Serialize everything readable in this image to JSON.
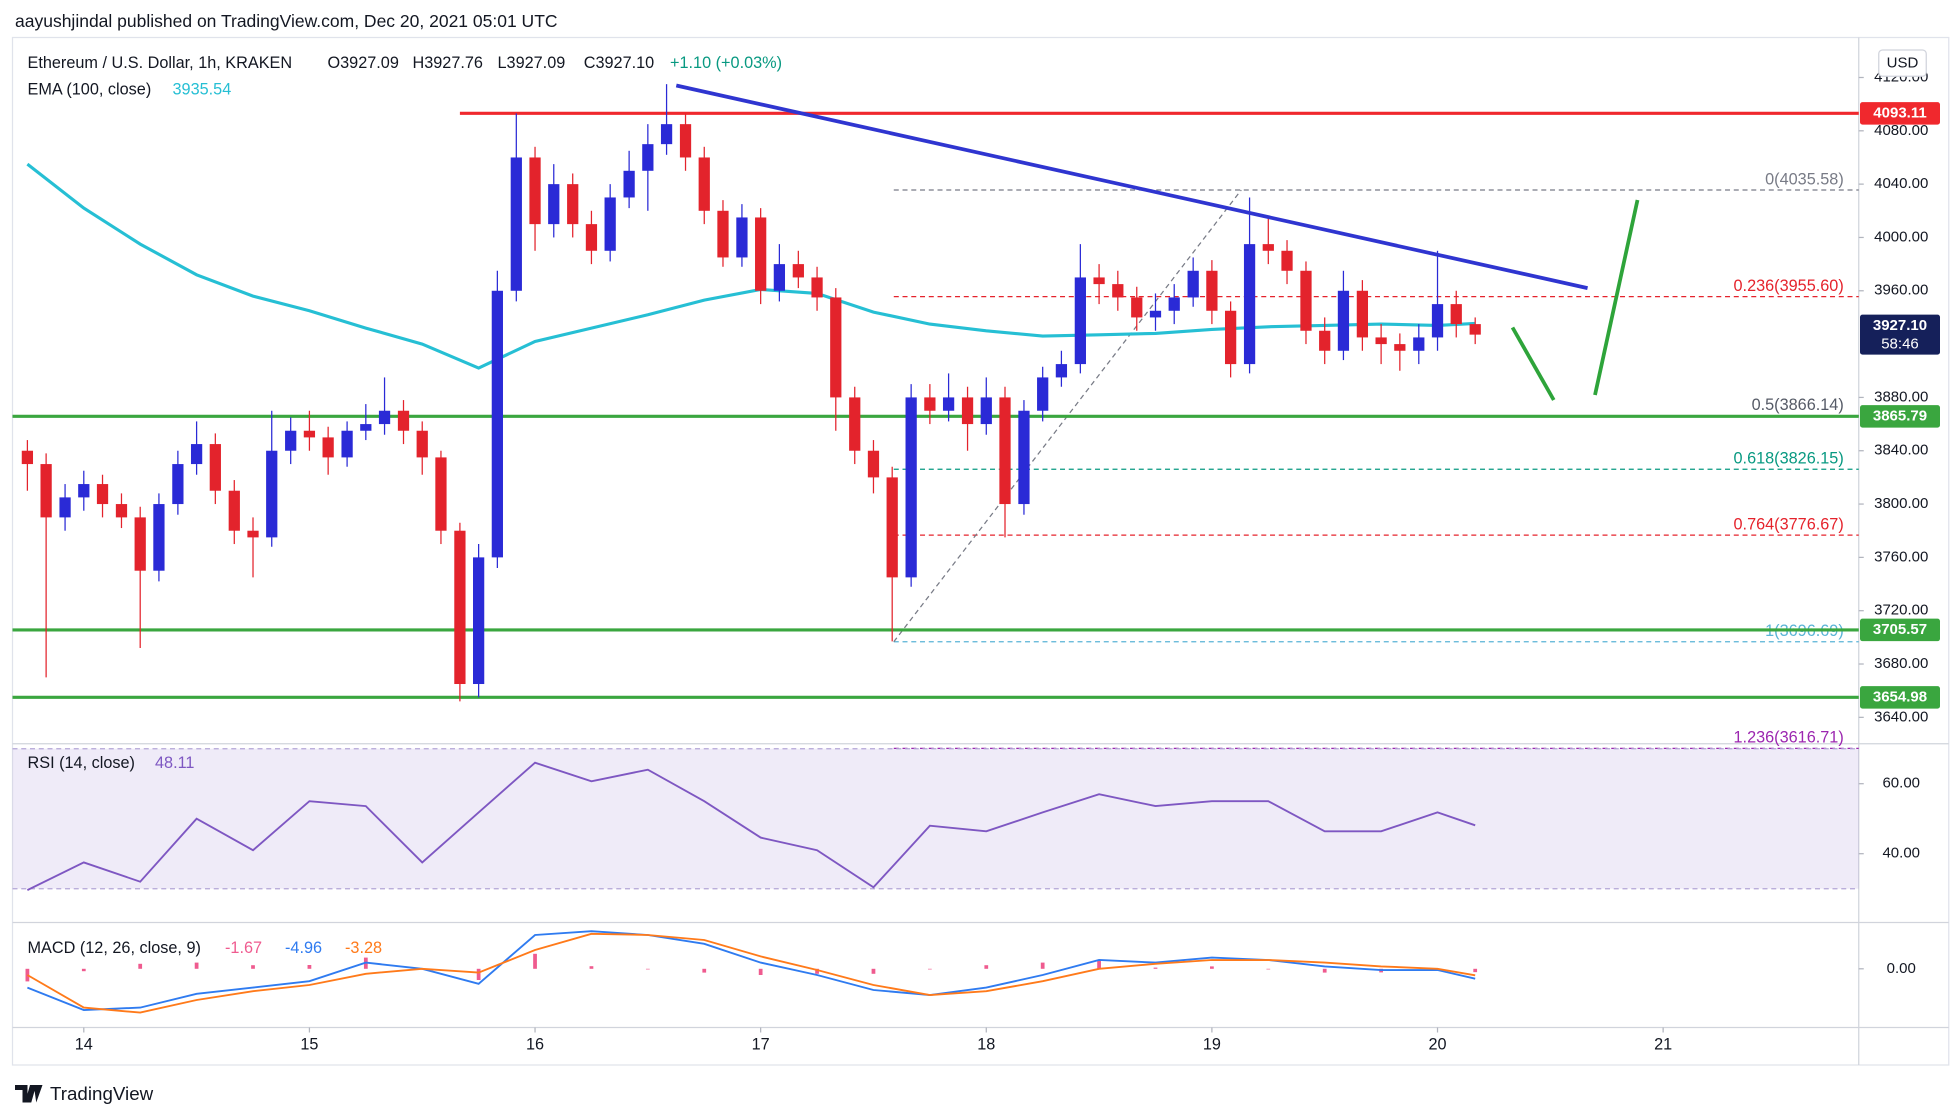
{
  "header": {
    "byline": "aayushjindal published on TradingView.com, Dec 20, 2021 05:01 UTC",
    "currency": "USD",
    "brand": "TradingView"
  },
  "chart_data": [
    {
      "type": "candlestick",
      "legend": {
        "symbol": "Ethereum / U.S. Dollar, 1h, KRAKEN",
        "open": "O3927.09",
        "high": "H3927.76",
        "low": "L3927.09",
        "close": "C3927.10",
        "change": "+1.10 (+0.03%)"
      },
      "xlim": [
        13.684,
        21.867
      ],
      "xticks": [
        14,
        15,
        16,
        17,
        18,
        19,
        20,
        21
      ],
      "ylim": [
        3623,
        4150
      ],
      "yticks": [
        {
          "value": 4120,
          "label": "4120.00"
        },
        {
          "value": 4080,
          "label": "4080.00"
        },
        {
          "value": 4040,
          "label": "4040.00"
        },
        {
          "value": 4000,
          "label": "4000.00"
        },
        {
          "value": 3960,
          "label": "3960.00"
        },
        {
          "value": 3880,
          "label": "3880.00"
        },
        {
          "value": 3840,
          "label": "3840.00"
        },
        {
          "value": 3800,
          "label": "3800.00"
        },
        {
          "value": 3760,
          "label": "3760.00"
        },
        {
          "value": 3720,
          "label": "3720.00"
        },
        {
          "value": 3680,
          "label": "3680.00"
        },
        {
          "value": 3640,
          "label": "3640.00"
        }
      ],
      "up_color": "#2a2ad6",
      "down_color": "#e3232c",
      "x": [
        13.75,
        13.833,
        13.917,
        14,
        14.083,
        14.167,
        14.25,
        14.333,
        14.417,
        14.5,
        14.583,
        14.667,
        14.75,
        14.833,
        14.917,
        15,
        15.083,
        15.167,
        15.25,
        15.333,
        15.417,
        15.5,
        15.583,
        15.667,
        15.75,
        15.833,
        15.917,
        16,
        16.083,
        16.167,
        16.25,
        16.333,
        16.417,
        16.5,
        16.583,
        16.667,
        16.75,
        16.833,
        16.917,
        17,
        17.083,
        17.167,
        17.25,
        17.333,
        17.417,
        17.5,
        17.583,
        17.667,
        17.75,
        17.833,
        17.917,
        18,
        18.083,
        18.167,
        18.25,
        18.333,
        18.417,
        18.5,
        18.583,
        18.667,
        18.75,
        18.833,
        18.917,
        19,
        19.083,
        19.167,
        19.25,
        19.333,
        19.417,
        19.5,
        19.583,
        19.667,
        19.75,
        19.833,
        19.917,
        20,
        20.083,
        20.167
      ],
      "open": [
        3840,
        3830,
        3790,
        3805,
        3815,
        3800,
        3790,
        3750,
        3800,
        3830,
        3845,
        3810,
        3780,
        3775,
        3840,
        3855,
        3850,
        3835,
        3855,
        3860,
        3870,
        3855,
        3835,
        3780,
        3665,
        3760,
        3960,
        4060,
        4010,
        4040,
        4010,
        3990,
        4030,
        4050,
        4070,
        4085,
        4060,
        4020,
        3985,
        4015,
        3960,
        3980,
        3970,
        3955,
        3880,
        3840,
        3820,
        3745,
        3880,
        3870,
        3880,
        3860,
        3880,
        3800,
        3870,
        3895,
        3905,
        3970,
        3965,
        3955,
        3940,
        3945,
        3955,
        3975,
        3945,
        3905,
        3995,
        3990,
        3975,
        3930,
        3915,
        3960,
        3925,
        3920,
        3915,
        3925,
        3950,
        3935
      ],
      "high": [
        3848,
        3838,
        3815,
        3825,
        3822,
        3808,
        3798,
        3808,
        3840,
        3862,
        3853,
        3818,
        3790,
        3870,
        3865,
        3870,
        3858,
        3862,
        3875,
        3895,
        3878,
        3862,
        3840,
        3786,
        3770,
        3975,
        4093,
        4068,
        4055,
        4048,
        4020,
        4040,
        4065,
        4085,
        4115,
        4093,
        4068,
        4028,
        4025,
        4022,
        3995,
        3990,
        3978,
        3962,
        3888,
        3848,
        3828,
        3890,
        3890,
        3898,
        3888,
        3895,
        3888,
        3878,
        3903,
        3915,
        3995,
        3980,
        3975,
        3963,
        3958,
        3965,
        3985,
        3983,
        3952,
        4030,
        4015,
        3998,
        3982,
        3940,
        3975,
        3968,
        3935,
        3928,
        3935,
        3990,
        3960,
        3940
      ],
      "low": [
        3810,
        3670,
        3780,
        3795,
        3790,
        3782,
        3692,
        3742,
        3792,
        3822,
        3800,
        3770,
        3745,
        3768,
        3830,
        3840,
        3822,
        3828,
        3848,
        3852,
        3845,
        3822,
        3770,
        3652,
        3655,
        3752,
        3952,
        3990,
        4000,
        4000,
        3980,
        3982,
        4022,
        4020,
        4062,
        4050,
        4010,
        3978,
        3978,
        3950,
        3952,
        3962,
        3945,
        3855,
        3830,
        3808,
        3697,
        3738,
        3860,
        3862,
        3840,
        3852,
        3775,
        3792,
        3862,
        3888,
        3898,
        3950,
        3945,
        3930,
        3930,
        3935,
        3948,
        3935,
        3895,
        3898,
        3980,
        3965,
        3920,
        3905,
        3908,
        3915,
        3905,
        3900,
        3905,
        3915,
        3925,
        3920
      ],
      "close": [
        3830,
        3790,
        3805,
        3815,
        3800,
        3790,
        3750,
        3800,
        3830,
        3845,
        3810,
        3780,
        3775,
        3840,
        3855,
        3850,
        3835,
        3855,
        3860,
        3870,
        3855,
        3835,
        3780,
        3665,
        3760,
        3960,
        4060,
        4010,
        4040,
        4010,
        3990,
        4030,
        4050,
        4070,
        4085,
        4060,
        4020,
        3985,
        4015,
        3960,
        3980,
        3970,
        3955,
        3880,
        3840,
        3820,
        3745,
        3880,
        3870,
        3880,
        3860,
        3880,
        3800,
        3870,
        3895,
        3905,
        3970,
        3965,
        3955,
        3940,
        3945,
        3955,
        3975,
        3945,
        3905,
        3995,
        3990,
        3975,
        3930,
        3915,
        3960,
        3925,
        3920,
        3915,
        3925,
        3950,
        3935,
        3927.1
      ],
      "ema": {
        "name": "EMA (100, close)",
        "color": "#26bfd4",
        "x": [
          13.75,
          14,
          14.25,
          14.5,
          14.75,
          15,
          15.25,
          15.5,
          15.75,
          16,
          16.25,
          16.5,
          16.75,
          17,
          17.25,
          17.5,
          17.75,
          18,
          18.25,
          18.5,
          18.75,
          19,
          19.25,
          19.5,
          19.75,
          20,
          20.167
        ],
        "values": [
          4055,
          4022,
          3995,
          3972,
          3956,
          3945,
          3932,
          3920,
          3902,
          3922,
          3932,
          3942,
          3953,
          3961,
          3958,
          3944,
          3935,
          3930,
          3926,
          3927,
          3928,
          3931,
          3933,
          3934,
          3935,
          3934,
          3935.54
        ]
      },
      "hlines": [
        {
          "value": 4093.11,
          "color": "#f0282d",
          "start": 15.667
        },
        {
          "value": 3865.79,
          "color": "#3aa63f"
        },
        {
          "value": 3705.57,
          "color": "#3aa63f"
        },
        {
          "value": 3654.98,
          "color": "#3aa63f"
        }
      ],
      "trendline": {
        "color": "#2f35d0",
        "x": [
          16.626,
          20.665
        ],
        "values": [
          4114,
          3962
        ]
      },
      "fib": {
        "x": [
          17.59,
          19.13
        ],
        "levels": [
          {
            "value": 4035.58,
            "label": "0(4035.58)",
            "color": "#787b86"
          },
          {
            "value": 3955.6,
            "label": "0.236(3955.60)",
            "color": "#e5232c"
          },
          {
            "value": 3866.14,
            "label": "0.5(3866.14)",
            "color": "#555a66"
          },
          {
            "value": 3826.15,
            "label": "0.618(3826.15)",
            "color": "#089981"
          },
          {
            "value": 3776.67,
            "label": "0.764(3776.67)",
            "color": "#e5232c"
          },
          {
            "value": 3696.69,
            "label": "1(3696.69)",
            "color": "#5ab4d6"
          },
          {
            "value": 3616.71,
            "label": "1.236(3616.71)",
            "color": "#9c27b0"
          }
        ]
      },
      "last": {
        "value": 3927.1,
        "label": "3927.10",
        "countdown": "58:46",
        "color": "#15205a"
      }
    },
    {
      "type": "line",
      "title": "RSI (14, close)",
      "color": "#7e57c2",
      "ylim": [
        20.7,
        70.7
      ],
      "yticks": [
        {
          "value": 60,
          "label": "60.00"
        },
        {
          "value": 40,
          "label": "40.00"
        }
      ],
      "band": [
        30,
        70
      ],
      "x": [
        13.75,
        14,
        14.25,
        14.5,
        14.75,
        15,
        15.25,
        15.5,
        15.75,
        16,
        16.25,
        16.5,
        16.75,
        17,
        17.25,
        17.5,
        17.75,
        18,
        18.25,
        18.5,
        18.75,
        19,
        19.25,
        19.5,
        19.75,
        20,
        20.167
      ],
      "values": [
        29.6,
        37.5,
        32,
        50,
        41,
        55,
        53.6,
        37.5,
        51.8,
        66,
        60.7,
        64,
        55,
        44.6,
        41,
        30.4,
        48,
        46.4,
        51.8,
        57,
        53.6,
        55,
        55,
        46.4,
        46.4,
        51.8,
        48.11
      ]
    },
    {
      "type": "macd",
      "title": "MACD (12, 26, close, 9)",
      "ylim": [
        -28.1,
        21.9
      ],
      "yticks": [
        {
          "value": 0,
          "label": "0.00"
        }
      ],
      "x": [
        13.75,
        14,
        14.25,
        14.5,
        14.75,
        15,
        15.25,
        15.5,
        15.75,
        16,
        16.25,
        16.5,
        16.75,
        17,
        17.25,
        17.5,
        17.75,
        18,
        18.25,
        18.5,
        18.75,
        19,
        19.25,
        19.5,
        19.75,
        20,
        20.167
      ],
      "histogram": {
        "color": "#ef5b8f",
        "values": [
          -6.3,
          -1.2,
          2.5,
          3.1,
          1.8,
          1.9,
          5.6,
          0,
          -5.6,
          7.5,
          1.3,
          0,
          -1.9,
          -3.1,
          -2.5,
          -2.5,
          0,
          1.8,
          3.1,
          4.4,
          0.6,
          1.2,
          0,
          -1.9,
          -1.8,
          -0.6,
          -1.67
        ]
      },
      "series": [
        {
          "color": "#2f7bf0",
          "values": [
            -9.4,
            -20.6,
            -19.4,
            -12.5,
            -9.4,
            -6.2,
            3.1,
            0,
            -7.5,
            16.9,
            18.8,
            16.9,
            12.5,
            3.1,
            -3.1,
            -10.6,
            -13.1,
            -9.4,
            -3.1,
            4.4,
            3.1,
            5.6,
            4.4,
            1.2,
            -0.6,
            -0.6,
            -4.96
          ]
        },
        {
          "color": "#ff7a1a",
          "values": [
            -3.1,
            -19.4,
            -21.9,
            -15.6,
            -11.2,
            -8.1,
            -2.5,
            0,
            -1.9,
            9.4,
            17.5,
            16.9,
            14.4,
            6.2,
            -0.6,
            -8.1,
            -13.1,
            -11.2,
            -6.2,
            0,
            2.5,
            4.4,
            4.4,
            3.1,
            1.2,
            0,
            -3.28
          ]
        }
      ]
    }
  ]
}
